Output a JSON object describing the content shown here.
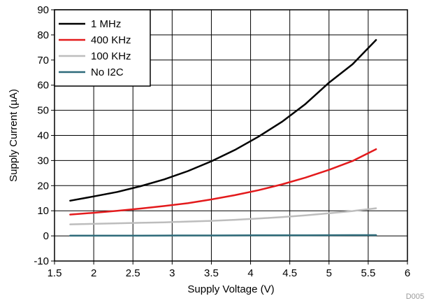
{
  "chart_data": {
    "type": "line",
    "title": "",
    "xlabel": "Supply Voltage (V)",
    "ylabel": "Supply Current (µA)",
    "xlim": [
      1.5,
      6
    ],
    "ylim": [
      -10,
      90
    ],
    "xticks": [
      "1.5",
      "2",
      "2.5",
      "3",
      "3.5",
      "4",
      "4.5",
      "5",
      "5.5",
      "6"
    ],
    "yticks": [
      "-10",
      "0",
      "10",
      "20",
      "30",
      "40",
      "50",
      "60",
      "70",
      "80",
      "90"
    ],
    "grid": true,
    "legend_position": "top-left",
    "series": [
      {
        "name": "1 MHz",
        "color": "#000000",
        "x": [
          1.7,
          2.0,
          2.3,
          2.6,
          2.9,
          3.2,
          3.5,
          3.8,
          4.1,
          4.4,
          4.7,
          5.0,
          5.3,
          5.6
        ],
        "y": [
          14,
          15.7,
          17.5,
          19.8,
          22.5,
          25.8,
          29.7,
          34.2,
          39.5,
          45.4,
          52.5,
          61,
          68.3,
          78
        ]
      },
      {
        "name": "400 KHz",
        "color": "#e31a1c",
        "x": [
          1.7,
          2.0,
          2.3,
          2.6,
          2.9,
          3.2,
          3.5,
          3.8,
          4.1,
          4.4,
          4.7,
          5.0,
          5.3,
          5.6
        ],
        "y": [
          8.5,
          9.2,
          10,
          10.9,
          11.9,
          13,
          14.5,
          16.2,
          18.2,
          20.5,
          23.2,
          26.3,
          29.8,
          34.5
        ]
      },
      {
        "name": "100 KHz",
        "color": "#bdbdbd",
        "x": [
          1.7,
          2.0,
          2.3,
          2.6,
          2.9,
          3.2,
          3.5,
          3.8,
          4.1,
          4.4,
          4.7,
          5.0,
          5.3,
          5.6
        ],
        "y": [
          4.6,
          4.8,
          5.0,
          5.2,
          5.4,
          5.7,
          6.0,
          6.4,
          6.9,
          7.5,
          8.2,
          9.0,
          9.9,
          11
        ]
      },
      {
        "name": "No I2C",
        "color": "#2e6b7a",
        "x": [
          1.7,
          2.0,
          2.3,
          2.6,
          2.9,
          3.2,
          3.5,
          3.8,
          4.1,
          4.4,
          4.7,
          5.0,
          5.3,
          5.6
        ],
        "y": [
          0.1,
          0.1,
          0.1,
          0.12,
          0.14,
          0.16,
          0.18,
          0.2,
          0.22,
          0.24,
          0.26,
          0.28,
          0.3,
          0.32
        ]
      }
    ],
    "footnote": "D005"
  }
}
